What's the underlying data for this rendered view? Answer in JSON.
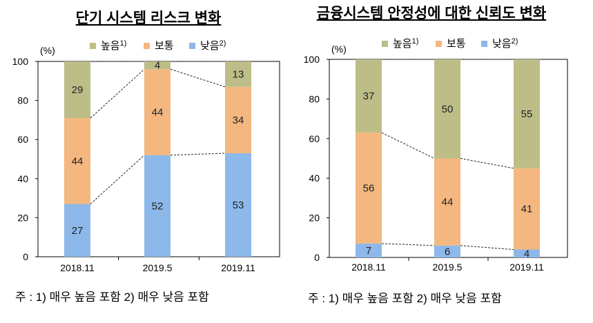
{
  "chart_data": [
    {
      "type": "bar",
      "stacked": true,
      "title": "단기 시스템 리스크 변화",
      "ylabel": "(%)",
      "ylim": [
        0,
        100
      ],
      "yticks": [
        "0",
        "20",
        "40",
        "60",
        "80",
        "100"
      ],
      "categories": [
        "2018.11",
        "2019.5",
        "2019.11"
      ],
      "legend_position": "top",
      "connector_lines": "dashed",
      "series": [
        {
          "name": "낮음",
          "sup": "2)",
          "color": "#8db8ea",
          "values": [
            27,
            52,
            53
          ]
        },
        {
          "name": "보통",
          "sup": "",
          "color": "#f3b77f",
          "values": [
            44,
            44,
            34
          ]
        },
        {
          "name": "높음",
          "sup": "1)",
          "color": "#bcbd87",
          "values": [
            29,
            4,
            13
          ]
        }
      ],
      "note": "주 : 1) 매우  높음  포함    2) 매우  낮음  포함"
    },
    {
      "type": "bar",
      "stacked": true,
      "title": "금융시스템 안정성에 대한 신뢰도 변화",
      "ylabel": "(%)",
      "ylim": [
        0,
        100
      ],
      "yticks": [
        "0",
        "20",
        "40",
        "60",
        "80",
        "100"
      ],
      "categories": [
        "2018.11",
        "2019.5",
        "2019.11"
      ],
      "legend_position": "top",
      "connector_lines": "dashed",
      "series": [
        {
          "name": "낮음",
          "sup": "2)",
          "color": "#8db8ea",
          "values": [
            7,
            6,
            4
          ]
        },
        {
          "name": "보통",
          "sup": "",
          "color": "#f3b77f",
          "values": [
            56,
            44,
            41
          ]
        },
        {
          "name": "높음",
          "sup": "1)",
          "color": "#bcbd87",
          "values": [
            37,
            50,
            55
          ]
        }
      ],
      "note": "주 : 1) 매우  높음  포함    2) 매우  낮음  포함"
    }
  ]
}
